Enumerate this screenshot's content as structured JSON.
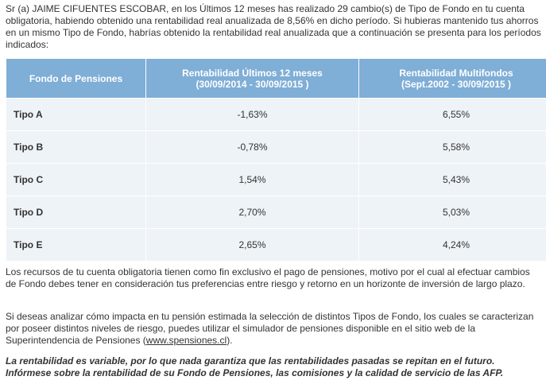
{
  "intro": "Sr (a) JAIME CIFUENTES ESCOBAR, en los Últimos 12 meses has realizado 29 cambio(s) de Tipo de Fondo en tu cuenta obligatoria, habiendo obtenido una rentabilidad real anualizada de 8,56% en dicho período. Si hubieras mantenido tus ahorros en un mismo Tipo de Fondo, habrías obtenido la rentabilidad real anualizada que a continuación se presenta para los períodos indicados:",
  "table": {
    "headers": {
      "fund": "Fondo de Pensiones",
      "last12_title": "Rentabilidad Últimos 12 meses",
      "last12_period": "(30/09/2014 - 30/09/2015 )",
      "multi_title": "Rentabilidad Multifondos",
      "multi_period": "(Sept.2002 - 30/09/2015 )"
    },
    "rows": [
      {
        "fund": "Tipo A",
        "last12": "-1,63%",
        "multi": "6,55%"
      },
      {
        "fund": "Tipo B",
        "last12": "-0,78%",
        "multi": "5,58%"
      },
      {
        "fund": "Tipo C",
        "last12": "1,54%",
        "multi": "5,43%"
      },
      {
        "fund": "Tipo D",
        "last12": "2,70%",
        "multi": "5,03%"
      },
      {
        "fund": "Tipo E",
        "last12": "2,65%",
        "multi": "4,24%"
      }
    ]
  },
  "paragraph1": "Los recursos de tu cuenta obligatoria tienen como fin exclusivo el pago de pensiones, motivo por el cual al efectuar cambios de Fondo debes tener en consideración tus preferencias entre riesgo y retorno en un horizonte de inversión de largo plazo.",
  "paragraph2_before": "Si deseas analizar cómo impacta en tu pensión estimada la selección de distintos Tipos de Fondo, los cuales se caracterizan por poseer distintos niveles de riesgo, puedes utilizar el simulador de pensiones disponible en el sitio web de la Superintendencia de Pensiones (",
  "paragraph2_link": "www.spensiones.cl",
  "paragraph2_after": ").",
  "disclaimer": "La rentabilidad es variable, por lo que nada garantiza que las rentabilidades pasadas se repitan en el futuro. Infórmese sobre la rentabilidad de su Fondo de Pensiones, las comisiones y la calidad de servicio de las AFP.",
  "colors": {
    "header_bg": "#7faed6",
    "row_bg": "#eef3f7",
    "text": "#333333"
  }
}
